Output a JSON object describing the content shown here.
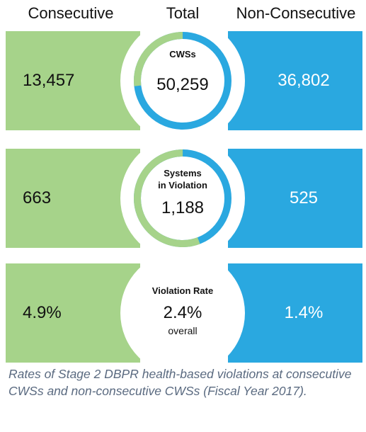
{
  "chart_data": {
    "type": "infographic",
    "headers": {
      "left": "Consecutive",
      "center": "Total",
      "right": "Non-Consecutive"
    },
    "rows": [
      {
        "label": "CWSs",
        "consecutive": "13,457",
        "total": "50,259",
        "non_consecutive": "36,802",
        "consecutive_share": 0.268
      },
      {
        "label_line1": "Systems",
        "label_line2": "in Violation",
        "consecutive": "663",
        "total": "1,188",
        "non_consecutive": "525",
        "consecutive_share": 0.558
      },
      {
        "label": "Violation Rate",
        "consecutive": "4.9%",
        "total": "2.4%",
        "total_note": "overall",
        "non_consecutive": "1.4%"
      }
    ],
    "colors": {
      "consecutive": "#a6d38a",
      "non_consecutive": "#2aa8e0"
    }
  },
  "caption": "Rates of Stage 2 DBPR health-based violations at consecutive CWSs and non-consecutive CWSs (Fiscal Year 2017)."
}
